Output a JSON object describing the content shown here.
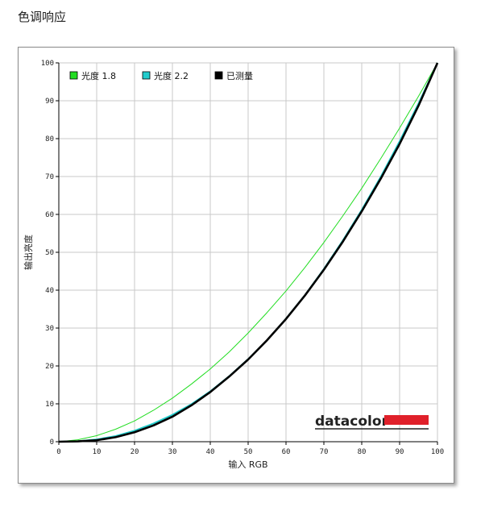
{
  "page": {
    "heading": "色调响应"
  },
  "chart_data": {
    "type": "line",
    "title": "",
    "xlabel": "输入 RGB",
    "ylabel": "输出亮度",
    "xlim": [
      0,
      100
    ],
    "ylim": [
      0,
      100
    ],
    "x_ticks": [
      0,
      10,
      20,
      30,
      40,
      50,
      60,
      70,
      80,
      90,
      100
    ],
    "y_ticks": [
      0,
      10,
      20,
      30,
      40,
      50,
      60,
      70,
      80,
      90,
      100
    ],
    "grid": true,
    "legend_position": "top-left",
    "series": [
      {
        "name": "光度 1.8",
        "color": "#22dd22",
        "x": [
          0,
          5,
          10,
          15,
          20,
          25,
          30,
          35,
          40,
          45,
          50,
          55,
          60,
          65,
          70,
          75,
          80,
          85,
          90,
          95,
          100
        ],
        "y": [
          0,
          0.5,
          1.6,
          3.3,
          5.5,
          8.3,
          11.5,
          15.2,
          19.2,
          23.7,
          28.7,
          34.1,
          39.8,
          46.0,
          52.6,
          59.6,
          66.9,
          74.7,
          82.8,
          91.2,
          100
        ]
      },
      {
        "name": "光度 2.2",
        "color": "#22cccc",
        "x": [
          0,
          5,
          10,
          15,
          20,
          25,
          30,
          35,
          40,
          45,
          50,
          55,
          60,
          65,
          70,
          75,
          80,
          85,
          90,
          95,
          100
        ],
        "y": [
          0,
          0.1,
          0.6,
          1.5,
          2.9,
          4.8,
          7.1,
          9.9,
          13.3,
          17.3,
          21.8,
          26.8,
          32.5,
          38.7,
          45.6,
          53.1,
          61.2,
          69.9,
          79.3,
          89.3,
          100
        ]
      },
      {
        "name": "已测量",
        "color": "#000000",
        "x": [
          0,
          5,
          10,
          15,
          20,
          25,
          30,
          35,
          40,
          45,
          50,
          55,
          60,
          65,
          70,
          75,
          80,
          85,
          90,
          95,
          100
        ],
        "y": [
          0,
          0.1,
          0.4,
          1.2,
          2.5,
          4.3,
          6.6,
          9.6,
          13.1,
          17.2,
          21.7,
          26.8,
          32.4,
          38.6,
          45.4,
          52.8,
          60.8,
          69.4,
          78.6,
          88.7,
          100
        ]
      }
    ],
    "logo": {
      "text": "datacolor",
      "bar_color": "#e0202a"
    }
  }
}
